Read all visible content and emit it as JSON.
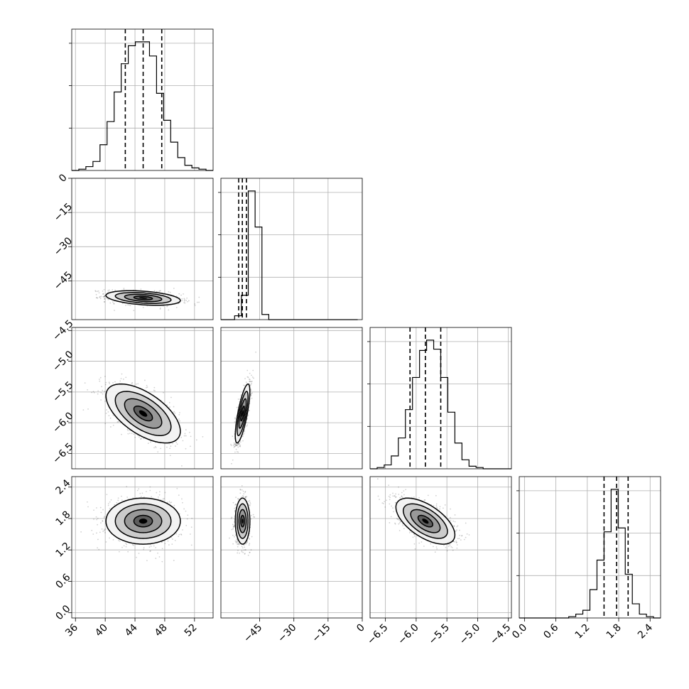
{
  "chart_data": {
    "type": "corner",
    "grid": true,
    "parameters": [
      {
        "range": [
          35.5,
          54.5
        ],
        "ticks": [
          36,
          40,
          44,
          48,
          52
        ],
        "tick_labels": [
          "36",
          "40",
          "44",
          "48",
          "52"
        ],
        "mean": 45.1,
        "sd": 2.5,
        "quantiles": [
          42.7,
          45.1,
          47.6
        ],
        "hist": {
          "edges": [
            35.5,
            36.45,
            37.4,
            38.35,
            39.3,
            40.25,
            41.2,
            42.15,
            43.1,
            44.05,
            45.0,
            45.95,
            46.9,
            47.85,
            48.8,
            49.75,
            50.7,
            51.65,
            52.6,
            53.55,
            54.5
          ],
          "counts": [
            0,
            0.01,
            0.03,
            0.07,
            0.2,
            0.38,
            0.61,
            0.83,
            0.97,
            1.0,
            1.0,
            0.89,
            0.6,
            0.39,
            0.22,
            0.1,
            0.04,
            0.02,
            0.01,
            0
          ]
        }
      },
      {
        "range": [
          -62,
          0
        ],
        "ticks": [
          -45,
          -30,
          -15,
          0
        ],
        "tick_labels": [
          "−45",
          "−30",
          "−15",
          "0"
        ],
        "y_ticks": [
          0,
          -15,
          -30,
          -45
        ],
        "y_tick_labels": [
          "0",
          "−15",
          "−30",
          "−45"
        ],
        "mean": -52.5,
        "sd": 1.6,
        "quantiles": [
          -54.2,
          -52.6,
          -50.8
        ],
        "hist": {
          "edges": [
            -62,
            -59,
            -56,
            -53,
            -50,
            -47,
            -44,
            -41,
            -38,
            -35,
            -32,
            -29,
            -26,
            -23,
            -20,
            -17,
            -14,
            -11,
            -8,
            -5,
            -2
          ],
          "counts": [
            0,
            0,
            0.03,
            0.19,
            1.0,
            0.72,
            0.04,
            0,
            0,
            0,
            0,
            0,
            0,
            0,
            0,
            0,
            0,
            0,
            0,
            0
          ]
        }
      },
      {
        "range": [
          -6.75,
          -4.45
        ],
        "ticks": [
          -6.5,
          -6.0,
          -5.5,
          -5.0,
          -4.5
        ],
        "tick_labels": [
          "−6.5",
          "−6.0",
          "−5.5",
          "−5.0",
          "−4.5"
        ],
        "y_ticks": [
          -4.5,
          -5.0,
          -5.5,
          -6.0,
          -6.5
        ],
        "y_tick_labels": [
          "−4.5",
          "−5.0",
          "−5.5",
          "−6.0",
          "−6.5"
        ],
        "mean": -5.85,
        "sd": 0.24,
        "quantiles": [
          -6.1,
          -5.85,
          -5.6
        ],
        "hist": {
          "edges": [
            -6.75,
            -6.635,
            -6.52,
            -6.405,
            -6.29,
            -6.175,
            -6.06,
            -5.945,
            -5.83,
            -5.715,
            -5.6,
            -5.485,
            -5.37,
            -5.255,
            -5.14,
            -5.025,
            -4.91,
            -4.795,
            -4.68,
            -4.565,
            -4.45
          ],
          "counts": [
            0,
            0.01,
            0.03,
            0.1,
            0.24,
            0.46,
            0.71,
            0.92,
            1.0,
            0.93,
            0.71,
            0.44,
            0.2,
            0.07,
            0.02,
            0.01,
            0,
            0,
            0,
            0
          ]
        }
      },
      {
        "range": [
          -0.1,
          2.6
        ],
        "ticks": [
          0.0,
          0.6,
          1.2,
          1.8,
          2.4
        ],
        "tick_labels": [
          "0.0",
          "0.6",
          "1.2",
          "1.8",
          "2.4"
        ],
        "y_ticks": [
          2.4,
          1.8,
          1.2,
          0.6,
          0.0
        ],
        "y_tick_labels": [
          "2.4",
          "1.8",
          "1.2",
          "0.6",
          "0.0"
        ],
        "mean": 1.75,
        "sd": 0.22,
        "quantiles": [
          1.52,
          1.76,
          1.98
        ],
        "hist": {
          "edges": [
            -0.1,
            0.035,
            0.17,
            0.305,
            0.44,
            0.575,
            0.71,
            0.845,
            0.98,
            1.115,
            1.25,
            1.385,
            1.52,
            1.655,
            1.79,
            1.925,
            2.06,
            2.195,
            2.33,
            2.465,
            2.6
          ],
          "counts": [
            0,
            0,
            0,
            0,
            0,
            0,
            0,
            0.01,
            0.03,
            0.06,
            0.22,
            0.45,
            0.67,
            1.0,
            0.7,
            0.34,
            0.11,
            0.03,
            0.01,
            0
          ]
        }
      }
    ],
    "correlations": [
      {
        "x": 0,
        "y": 1,
        "rho": -0.35
      },
      {
        "x": 0,
        "y": 2,
        "rho": -0.6
      },
      {
        "x": 1,
        "y": 2,
        "rho": 0.75
      },
      {
        "x": 0,
        "y": 3,
        "rho": 0.0
      },
      {
        "x": 1,
        "y": 3,
        "rho": 0.0
      },
      {
        "x": 2,
        "y": 3,
        "rho": -0.6
      }
    ],
    "contour_levels_sigma": [
      0.5,
      1.0,
      1.5,
      2.0
    ],
    "n_scatter_points": 900
  }
}
